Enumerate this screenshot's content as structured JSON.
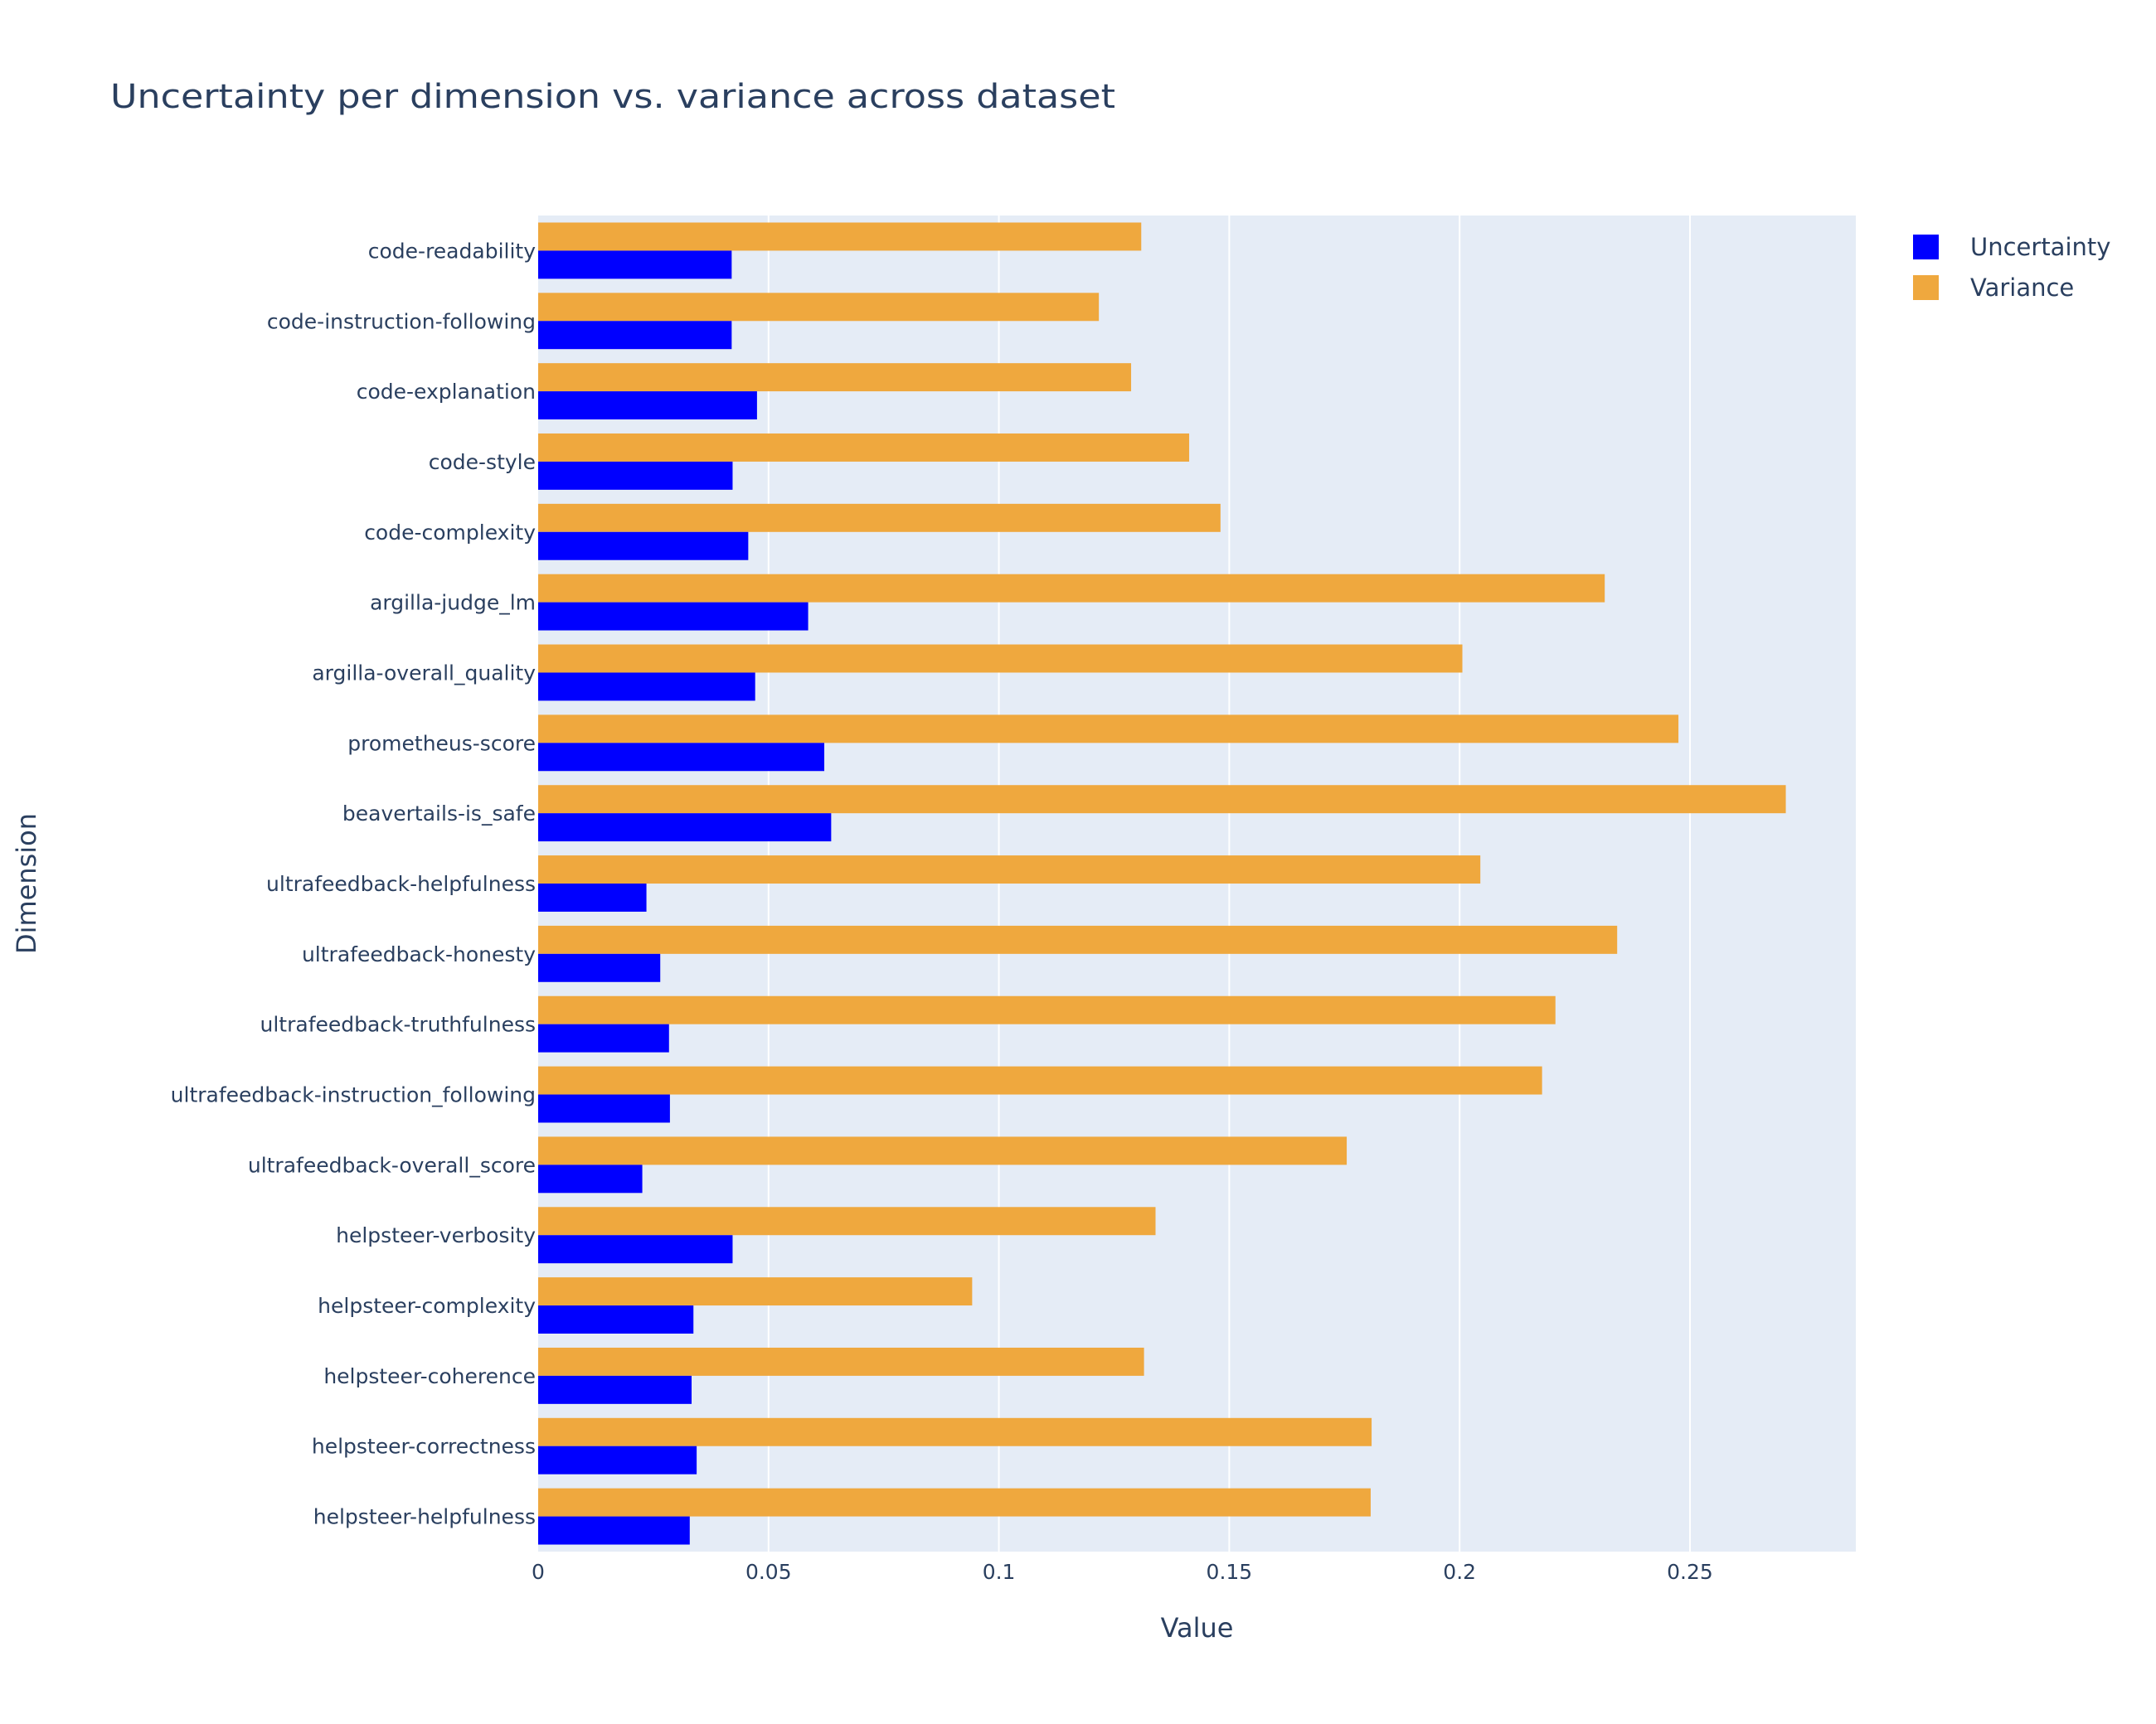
{
  "chart_data": {
    "type": "bar",
    "orientation": "horizontal",
    "title": "Uncertainty per dimension vs. variance across dataset",
    "xlabel": "Value",
    "ylabel": "Dimension",
    "xlim": [
      0,
      0.286
    ],
    "xticks": [
      0,
      0.05,
      0.1,
      0.15,
      0.2,
      0.25
    ],
    "xtick_labels": [
      "0",
      "0.05",
      "0.1",
      "0.15",
      "0.2",
      "0.25"
    ],
    "grid": true,
    "legend_position": "top-right",
    "categories": [
      "code-readability",
      "code-instruction-following",
      "code-explanation",
      "code-style",
      "code-complexity",
      "argilla-judge_lm",
      "argilla-overall_quality",
      "prometheus-score",
      "beavertails-is_safe",
      "ultrafeedback-helpfulness",
      "ultrafeedback-honesty",
      "ultrafeedback-truthfulness",
      "ultrafeedback-instruction_following",
      "ultrafeedback-overall_score",
      "helpsteer-verbosity",
      "helpsteer-complexity",
      "helpsteer-coherence",
      "helpsteer-correctness",
      "helpsteer-helpfulness"
    ],
    "series": [
      {
        "name": "Uncertainty",
        "color": "#0000FF",
        "values": [
          0.042,
          0.042,
          0.0475,
          0.0422,
          0.0456,
          0.0586,
          0.0471,
          0.0621,
          0.0636,
          0.0235,
          0.0265,
          0.0284,
          0.0286,
          0.0226,
          0.0422,
          0.0337,
          0.0333,
          0.0344,
          0.0329
        ]
      },
      {
        "name": "Variance",
        "color": "#EFA83E",
        "values": [
          0.1309,
          0.1217,
          0.1287,
          0.1413,
          0.1481,
          0.2315,
          0.2006,
          0.2475,
          0.2708,
          0.2045,
          0.2342,
          0.2208,
          0.2179,
          0.1755,
          0.134,
          0.0942,
          0.1315,
          0.1809,
          0.1807
        ]
      }
    ],
    "colors": {
      "plot_background": "#E5ECF6",
      "grid": "#FFFFFF",
      "text": "#2A3F5F"
    }
  }
}
